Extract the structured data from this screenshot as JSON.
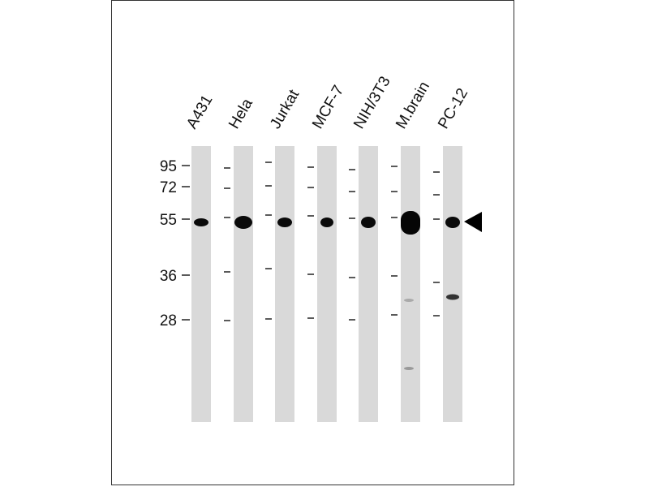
{
  "lanes": [
    "A431",
    "Hela",
    "Jurkat",
    "MCF-7",
    "NIH/3T3",
    "M.brain",
    "PC-12"
  ],
  "markers": [
    "95",
    "72",
    "55",
    "36",
    "28"
  ]
}
